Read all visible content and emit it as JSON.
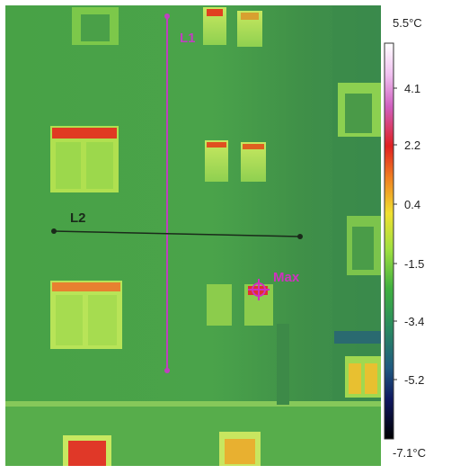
{
  "colors": {
    "facade": "#4fa84a",
    "facade_dark": "#3c8c44",
    "window_frame": "#a8e050",
    "window_glass": "#8fd64a",
    "hot": "#e03020",
    "line_L1": "#c040c0",
    "line_L2": "#1a2a1a",
    "marker": "#d030c0"
  },
  "overlay": {
    "line1_label": "L1",
    "line2_label": "L2",
    "max_label": "Max"
  },
  "scale": {
    "top_label": "5.5°C",
    "bottom_label": "-7.1°C",
    "ticks": [
      "4.1",
      "2.2",
      "0.4",
      "-1.5",
      "-3.4",
      "-5.2"
    ]
  }
}
